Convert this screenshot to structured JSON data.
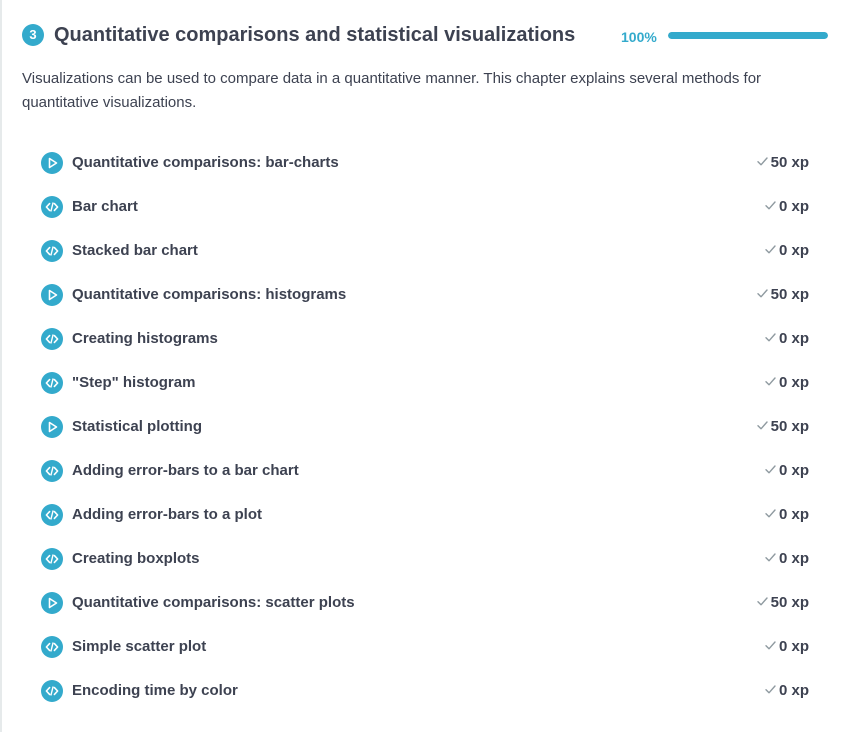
{
  "chapter": {
    "number": "3",
    "title": "Quantitative comparisons and statistical visualizations",
    "progress_label": "100%",
    "progress_fraction": 1.0,
    "description": "Visualizations can be used to compare data in a quantitative manner. This chapter explains several methods for quantitative visualizations."
  },
  "colors": {
    "accent": "#33aacc",
    "text": "#3d4251",
    "check": "#8f9aa0",
    "track": "#e6eaeb"
  },
  "exercises": [
    {
      "type": "video",
      "icon": "play-icon",
      "title": "Quantitative comparisons: bar-charts",
      "xp": "50 xp"
    },
    {
      "type": "code",
      "icon": "code-icon",
      "title": "Bar chart",
      "xp": "0 xp"
    },
    {
      "type": "code",
      "icon": "code-icon",
      "title": "Stacked bar chart",
      "xp": "0 xp"
    },
    {
      "type": "video",
      "icon": "play-icon",
      "title": "Quantitative comparisons: histograms",
      "xp": "50 xp"
    },
    {
      "type": "code",
      "icon": "code-icon",
      "title": "Creating histograms",
      "xp": "0 xp"
    },
    {
      "type": "code",
      "icon": "code-icon",
      "title": "\"Step\" histogram",
      "xp": "0 xp"
    },
    {
      "type": "video",
      "icon": "play-icon",
      "title": "Statistical plotting",
      "xp": "50 xp"
    },
    {
      "type": "code",
      "icon": "code-icon",
      "title": "Adding error-bars to a bar chart",
      "xp": "0 xp"
    },
    {
      "type": "code",
      "icon": "code-icon",
      "title": "Adding error-bars to a plot",
      "xp": "0 xp"
    },
    {
      "type": "code",
      "icon": "code-icon",
      "title": "Creating boxplots",
      "xp": "0 xp"
    },
    {
      "type": "video",
      "icon": "play-icon",
      "title": "Quantitative comparisons: scatter plots",
      "xp": "50 xp"
    },
    {
      "type": "code",
      "icon": "code-icon",
      "title": "Simple scatter plot",
      "xp": "0 xp"
    },
    {
      "type": "code",
      "icon": "code-icon",
      "title": "Encoding time by color",
      "xp": "0 xp"
    }
  ]
}
